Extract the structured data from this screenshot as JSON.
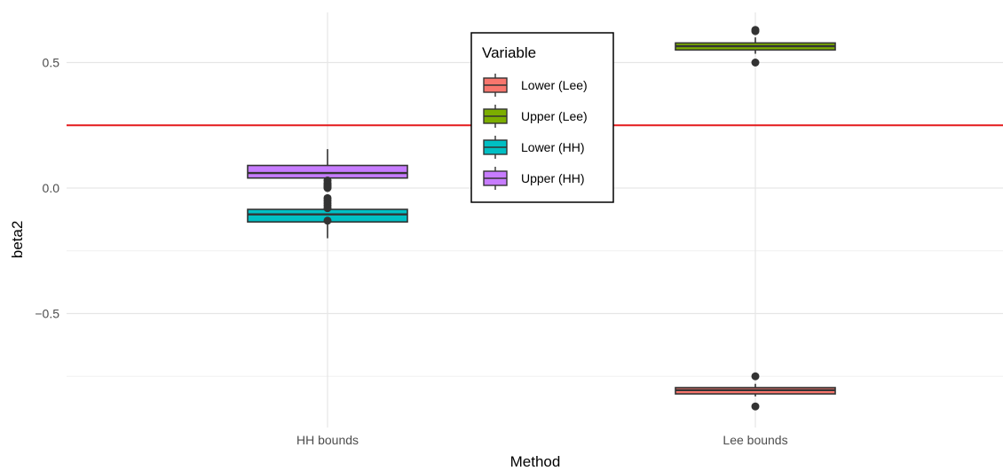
{
  "chart_data": {
    "type": "boxplot",
    "xlabel": "Method",
    "ylabel": "beta2",
    "categories": [
      "HH bounds",
      "Lee bounds"
    ],
    "ylim": [
      -0.9,
      0.7
    ],
    "y_ticks": [
      -0.5,
      0.0,
      0.5
    ],
    "y_tick_labels": [
      "−0.5",
      "0.0",
      "0.5"
    ],
    "grid": true,
    "reference_line": {
      "y": 0.25,
      "color": "#e41a1c"
    },
    "legend": {
      "title": "Variable",
      "placement": "top-center",
      "items": [
        {
          "label": "Lower (Lee)",
          "color": "#F8766D"
        },
        {
          "label": "Upper (Lee)",
          "color": "#7CAE00"
        },
        {
          "label": "Lower (HH)",
          "color": "#00BFC4"
        },
        {
          "label": "Upper (HH)",
          "color": "#C77CFF"
        }
      ]
    },
    "series": [
      {
        "name": "Upper (HH)",
        "category": "HH bounds",
        "color": "#C77CFF",
        "whisker_low": 0.0,
        "q1": 0.04,
        "median": 0.06,
        "q3": 0.09,
        "whisker_high": 0.155,
        "outliers": [
          0.03,
          0.02,
          0.015,
          0.01,
          0.005,
          0.0
        ]
      },
      {
        "name": "Lower (HH)",
        "category": "HH bounds",
        "color": "#00BFC4",
        "whisker_low": -0.2,
        "q1": -0.135,
        "median": -0.105,
        "q3": -0.085,
        "whisker_high": -0.04,
        "outliers": [
          -0.04,
          -0.05,
          -0.06,
          -0.07,
          -0.08,
          -0.13
        ]
      },
      {
        "name": "Upper (Lee)",
        "category": "Lee bounds",
        "color": "#7CAE00",
        "whisker_low": 0.535,
        "q1": 0.55,
        "median": 0.565,
        "q3": 0.578,
        "whisker_high": 0.6,
        "outliers": [
          0.625,
          0.63,
          0.5
        ]
      },
      {
        "name": "Lower (Lee)",
        "category": "Lee bounds",
        "color": "#F8766D",
        "whisker_low": -0.83,
        "q1": -0.82,
        "median": -0.805,
        "q3": -0.795,
        "whisker_high": -0.78,
        "outliers": [
          -0.75,
          -0.87
        ]
      }
    ]
  }
}
